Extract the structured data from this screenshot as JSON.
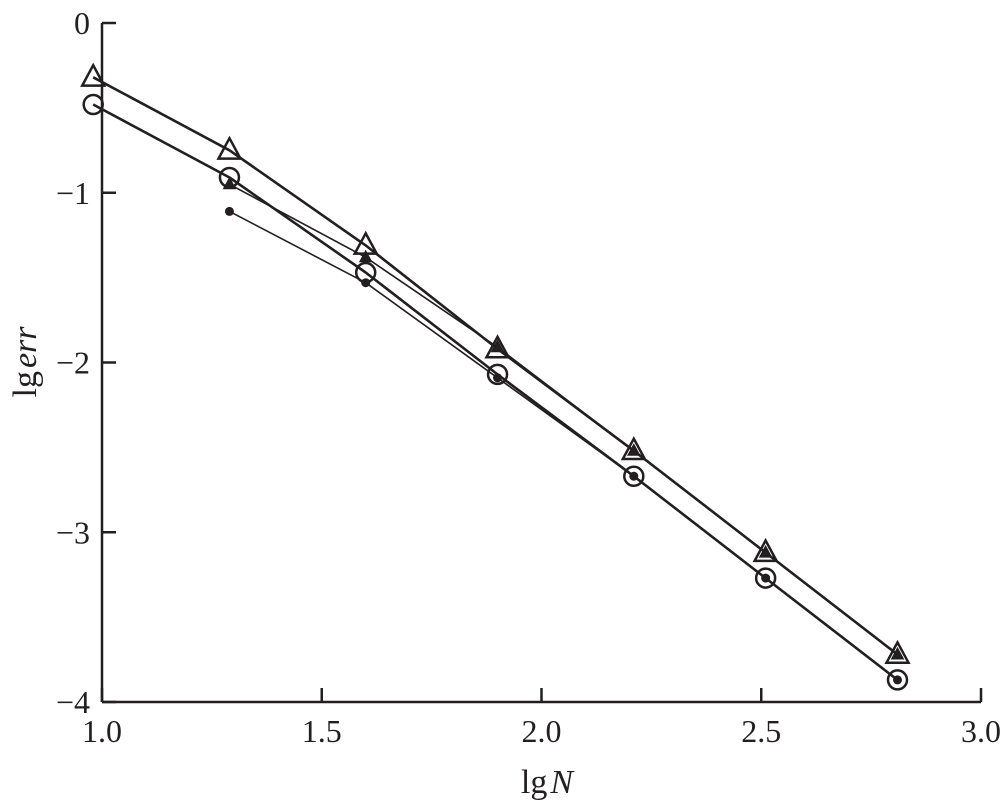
{
  "chart_data": {
    "type": "line",
    "xlabel": "lg N",
    "xlabel_parts": {
      "prefix": "lg",
      "variable": "N"
    },
    "ylabel": "lg err",
    "ylabel_parts": {
      "prefix": "lg",
      "variable": "err"
    },
    "xlim": [
      1.0,
      3.0
    ],
    "ylim": [
      -4,
      0
    ],
    "x_ticks": [
      1.0,
      1.5,
      2.0,
      2.5,
      3.0
    ],
    "x_tick_labels": [
      "1.0",
      "1.5",
      "2.0",
      "2.5",
      "3.0"
    ],
    "y_ticks": [
      0,
      -1,
      -2,
      -3,
      -4
    ],
    "y_tick_labels": [
      "0",
      "−1",
      "−2",
      "−3",
      "−4"
    ],
    "grid": false,
    "legend": "none",
    "series": [
      {
        "marker": "open-triangle",
        "x": [
          0.98,
          1.29,
          1.6,
          1.9,
          2.21,
          2.51,
          2.81
        ],
        "y": [
          -0.32,
          -0.75,
          -1.31,
          -1.92,
          -2.52,
          -3.12,
          -3.72
        ]
      },
      {
        "marker": "filled-triangle",
        "x": [
          1.29,
          1.6,
          1.9,
          2.21,
          2.51,
          2.81
        ],
        "y": [
          -0.95,
          -1.38,
          -1.91,
          -2.52,
          -3.12,
          -3.72
        ]
      },
      {
        "marker": "open-circle",
        "x": [
          0.98,
          1.29,
          1.6,
          1.9,
          2.21,
          2.51,
          2.81
        ],
        "y": [
          -0.48,
          -0.91,
          -1.47,
          -2.07,
          -2.67,
          -3.27,
          -3.87
        ]
      },
      {
        "marker": "filled-dot",
        "x": [
          1.29,
          1.6,
          1.9,
          2.21,
          2.51,
          2.81
        ],
        "y": [
          -1.11,
          -1.53,
          -2.09,
          -2.67,
          -3.27,
          -3.87
        ]
      }
    ],
    "colors": {
      "ink": "#231f20",
      "background": "#ffffff"
    }
  }
}
